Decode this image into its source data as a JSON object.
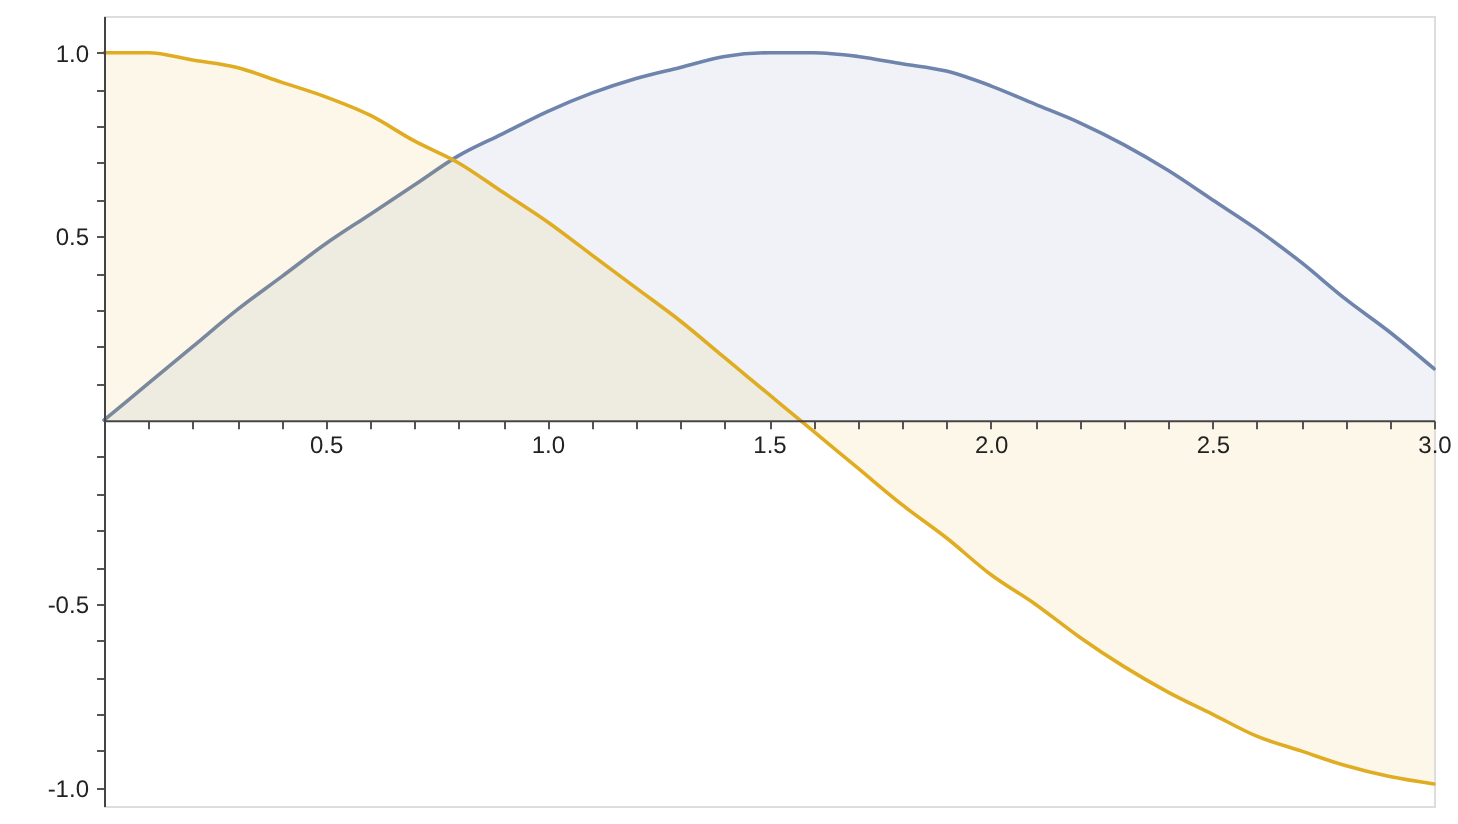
{
  "chart_data": {
    "type": "area",
    "x": [
      0,
      0.1,
      0.2,
      0.3,
      0.4,
      0.5,
      0.6,
      0.7,
      0.8,
      0.9,
      1.0,
      1.1,
      1.2,
      1.3,
      1.4,
      1.5,
      1.6,
      1.7,
      1.8,
      1.9,
      2.0,
      2.1,
      2.2,
      2.3,
      2.4,
      2.5,
      2.6,
      2.7,
      2.8,
      2.9,
      3.0
    ],
    "series": [
      {
        "color": "#6f84ad",
        "values": [
          0,
          0.1,
          0.2,
          0.3,
          0.39,
          0.48,
          0.56,
          0.64,
          0.72,
          0.78,
          0.84,
          0.89,
          0.93,
          0.96,
          0.99,
          1.0,
          1.0,
          0.99,
          0.97,
          0.95,
          0.91,
          0.86,
          0.81,
          0.75,
          0.68,
          0.6,
          0.52,
          0.43,
          0.33,
          0.24,
          0.14
        ]
      },
      {
        "color": "#e0ac22",
        "values": [
          1.0,
          1.0,
          0.98,
          0.96,
          0.92,
          0.88,
          0.83,
          0.76,
          0.7,
          0.62,
          0.54,
          0.45,
          0.36,
          0.27,
          0.17,
          0.07,
          -0.03,
          -0.13,
          -0.23,
          -0.32,
          -0.42,
          -0.5,
          -0.59,
          -0.67,
          -0.74,
          -0.8,
          -0.86,
          -0.9,
          -0.94,
          -0.97,
          -0.99
        ]
      }
    ],
    "xlim": [
      0,
      3
    ],
    "ylim": [
      -1.05,
      1.1
    ],
    "xticks": [
      {
        "value": 0.1,
        "label": null
      },
      {
        "value": 0.2,
        "label": null
      },
      {
        "value": 0.3,
        "label": null
      },
      {
        "value": 0.4,
        "label": null
      },
      0.5,
      {
        "value": 0.6,
        "label": null
      },
      {
        "value": 0.7,
        "label": null
      },
      {
        "value": 0.8,
        "label": null
      },
      {
        "value": 0.9,
        "label": null
      },
      {
        "value": 1,
        "label": "1.0"
      },
      {
        "value": 1.1,
        "label": null
      },
      {
        "value": 1.2,
        "label": null
      },
      {
        "value": 1.3,
        "label": null
      },
      {
        "value": 1.4,
        "label": null
      },
      1.5,
      {
        "value": 1.6,
        "label": null
      },
      {
        "value": 1.7,
        "label": null
      },
      {
        "value": 1.8,
        "label": null
      },
      {
        "value": 1.9,
        "label": null
      },
      {
        "value": 2,
        "label": "2.0"
      },
      {
        "value": 2.1,
        "label": null
      },
      {
        "value": 2.2,
        "label": null
      },
      {
        "value": 2.3,
        "label": null
      },
      {
        "value": 2.4,
        "label": null
      },
      2.5,
      {
        "value": 2.6,
        "label": null
      },
      {
        "value": 2.7,
        "label": null
      },
      {
        "value": 2.8,
        "label": null
      },
      {
        "value": 2.9,
        "label": null
      },
      {
        "value": 3,
        "label": "3.0"
      }
    ],
    "yticks": [
      {
        "value": -1,
        "label": "-1.0"
      },
      {
        "value": -0.9,
        "label": null
      },
      {
        "value": -0.8,
        "label": null
      },
      {
        "value": -0.7,
        "label": null
      },
      {
        "value": -0.6,
        "label": null
      },
      -0.5,
      {
        "value": -0.4,
        "label": null
      },
      {
        "value": -0.3,
        "label": null
      },
      {
        "value": -0.2,
        "label": null
      },
      {
        "value": -0.1,
        "label": null
      },
      {
        "value": 0.1,
        "label": null
      },
      {
        "value": 0.2,
        "label": null
      },
      {
        "value": 0.3,
        "label": null
      },
      {
        "value": 0.4,
        "label": null
      },
      0.5,
      {
        "value": 0.6,
        "label": null
      },
      {
        "value": 0.7,
        "label": null
      },
      {
        "value": 0.8,
        "label": null
      },
      {
        "value": 0.9,
        "label": null
      },
      {
        "value": 1,
        "label": "1.0"
      }
    ]
  }
}
